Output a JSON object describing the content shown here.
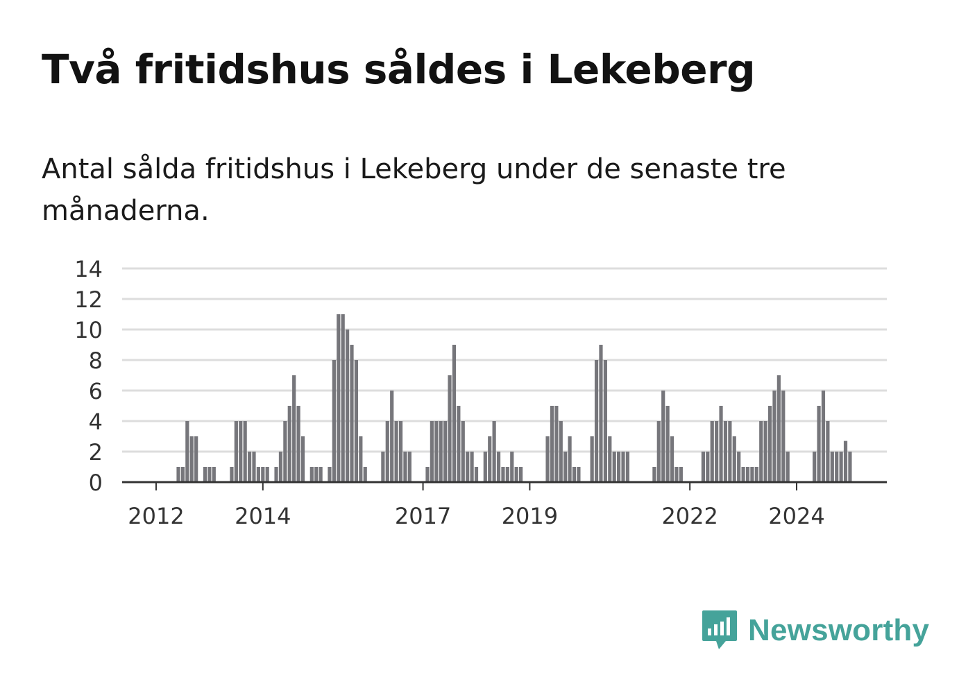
{
  "title": "Två fritidshus såldes i Lekeberg",
  "subtitle": "Antal sålda fritidshus i Lekeberg under de senaste tre månaderna.",
  "brand": {
    "name": "Newsworthy",
    "color": "#45a39a",
    "icon": "newsworthy-logo-icon"
  },
  "colors": {
    "bars": "#76767b",
    "highlight": "#1f9a94",
    "grid": "#dddddd",
    "baseline": "#333333"
  },
  "chart_data": {
    "type": "bar",
    "title": "Två fritidshus såldes i Lekeberg",
    "xlabel": "",
    "ylabel": "",
    "ylim": [
      0,
      14
    ],
    "yticks": [
      "0",
      "2",
      "4",
      "6",
      "8",
      "10",
      "12",
      "14"
    ],
    "xtick_labels": [
      {
        "label": "2012",
        "index": 7
      },
      {
        "label": "2014",
        "index": 31
      },
      {
        "label": "2017",
        "index": 67
      },
      {
        "label": "2019",
        "index": 91
      },
      {
        "label": "2022",
        "index": 127
      },
      {
        "label": "2024",
        "index": 151
      }
    ],
    "grid": true,
    "legend": "none",
    "values": [
      0,
      0,
      0,
      0,
      0,
      0,
      0,
      0,
      0,
      0,
      0,
      0,
      1,
      1,
      4,
      3,
      3,
      0,
      1,
      1,
      1,
      0,
      0,
      0,
      1,
      4,
      4,
      4,
      2,
      2,
      1,
      1,
      1,
      0,
      1,
      2,
      4,
      5,
      7,
      5,
      3,
      0,
      1,
      1,
      1,
      0,
      1,
      8,
      11,
      11,
      10,
      9,
      8,
      3,
      1,
      0,
      0,
      0,
      2,
      4,
      6,
      4,
      4,
      2,
      2,
      0,
      0,
      0,
      1,
      4,
      4,
      4,
      4,
      7,
      9,
      5,
      4,
      2,
      2,
      1,
      0,
      2,
      3,
      4,
      2,
      1,
      1,
      2,
      1,
      1,
      0,
      0,
      0,
      0,
      0,
      3,
      5,
      5,
      4,
      2,
      3,
      1,
      1,
      0,
      0,
      3,
      8,
      9,
      8,
      3,
      2,
      2,
      2,
      2,
      0,
      0,
      0,
      0,
      0,
      1,
      4,
      6,
      5,
      3,
      1,
      1,
      0,
      0,
      0,
      0,
      2,
      2,
      4,
      4,
      5,
      4,
      4,
      3,
      2,
      1,
      1,
      1,
      1,
      4,
      4,
      5,
      6,
      7,
      6,
      2,
      0,
      0,
      0,
      0,
      0,
      2,
      5,
      6,
      4,
      2,
      2,
      2,
      2.7,
      2
    ],
    "highlight_index": 164,
    "annotation": {
      "index": 164,
      "text": "2"
    }
  }
}
